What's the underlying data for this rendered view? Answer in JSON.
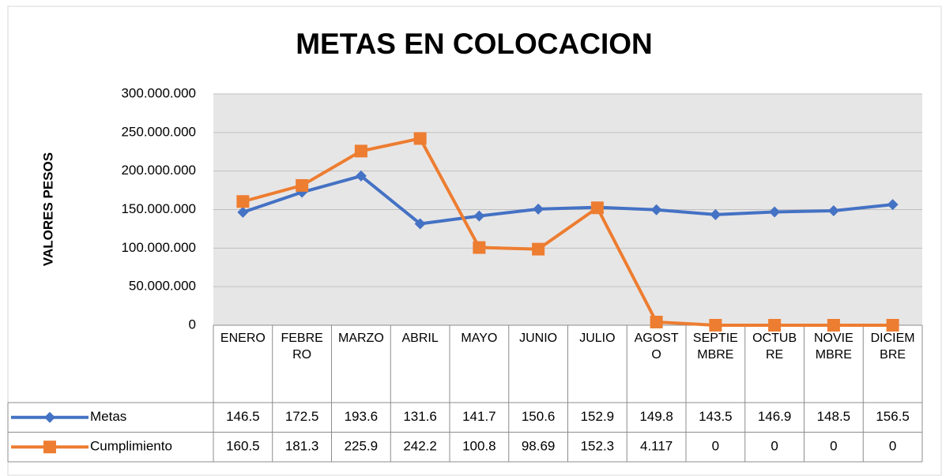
{
  "chart_data": {
    "type": "line",
    "title": "METAS EN COLOCACION",
    "y_label": "VALORES PESOS",
    "categories": [
      "ENERO",
      "FEBRERO",
      "MARZO",
      "ABRIL",
      "MAYO",
      "JUNIO",
      "JULIO",
      "AGOSTO",
      "SEPTIEMBRE",
      "OCTUBRE",
      "NOVIEMBRE",
      "DICIEMBRE"
    ],
    "series": [
      {
        "name": "Metas",
        "color": "#4472c4",
        "marker": "diamond",
        "values": [
          146500000,
          172500000,
          193600000,
          131600000,
          141700000,
          150600000,
          152900000,
          149800000,
          143500000,
          146900000,
          148500000,
          156500000
        ],
        "value_labels": [
          "146.5",
          "172.5",
          "193.6",
          "131.6",
          "141.7",
          "150.6",
          "152.9",
          "149.8",
          "143.5",
          "146.9",
          "148.5",
          "156.5"
        ]
      },
      {
        "name": "Cumplimiento",
        "color": "#ed7d31",
        "marker": "square",
        "values": [
          160500000,
          181300000,
          225900000,
          242200000,
          100800000,
          98690000,
          152300000,
          4117000,
          0,
          0,
          0,
          0
        ],
        "value_labels": [
          "160.5",
          "181.3",
          "225.9",
          "242.2",
          "100.8",
          "98.69",
          "152.3",
          "4.117",
          "0",
          "0",
          "0",
          "0"
        ]
      }
    ],
    "ylim": [
      0,
      300000000
    ],
    "yticks": [
      0,
      {
        "value": 50000000,
        "label": "50.000.000"
      },
      {
        "value": 100000000,
        "label": "100.000.000"
      },
      {
        "value": 150000000,
        "label": "150.000.000"
      },
      {
        "value": 200000000,
        "label": "200.000.000"
      },
      {
        "value": 250000000,
        "label": "250.000.000"
      },
      {
        "value": 300000000,
        "label": "300.000.000"
      }
    ],
    "grid": true
  }
}
